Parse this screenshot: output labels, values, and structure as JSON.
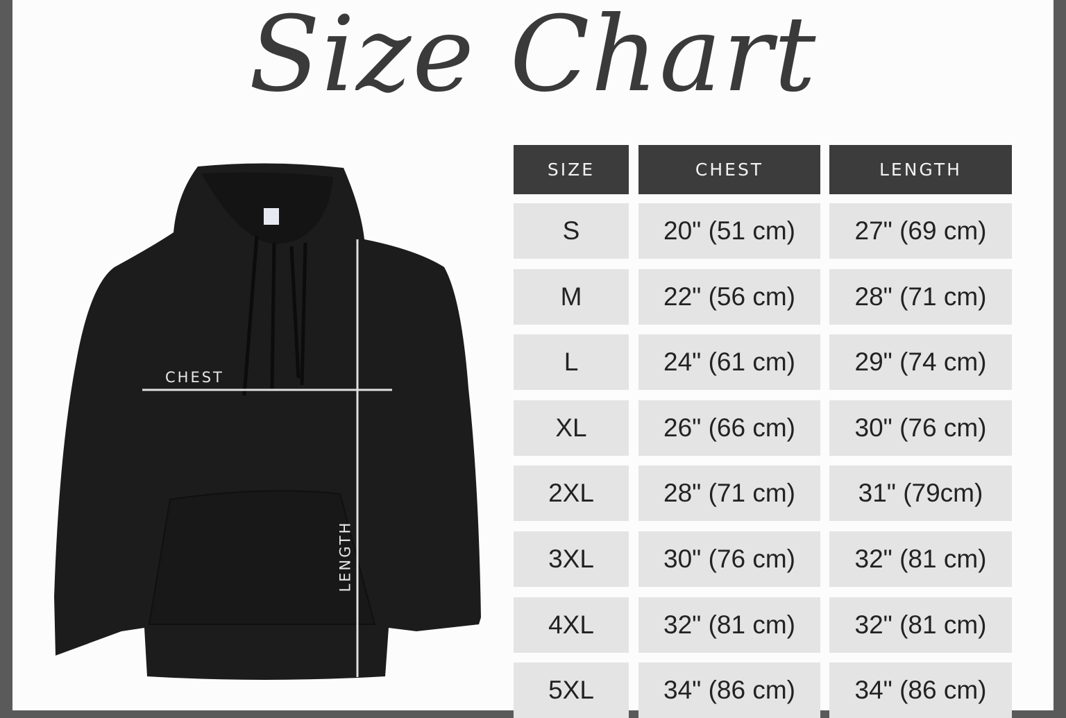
{
  "title": "Size Chart",
  "diagram_labels": {
    "chest": "CHEST",
    "length": "LENGTH"
  },
  "table": {
    "headers": [
      "SIZE",
      "CHEST",
      "LENGTH"
    ],
    "rows": [
      [
        "S",
        "20\" (51 cm)",
        "27\" (69 cm)"
      ],
      [
        "M",
        "22\" (56 cm)",
        "28\" (71 cm)"
      ],
      [
        "L",
        "24\" (61 cm)",
        "29\" (74 cm)"
      ],
      [
        "XL",
        "26\" (66 cm)",
        "30\" (76 cm)"
      ],
      [
        "2XL",
        "28\" (71 cm)",
        "31\" (79cm)"
      ],
      [
        "3XL",
        "30\" (76 cm)",
        "32\" (81 cm)"
      ],
      [
        "4XL",
        "32\" (81 cm)",
        "32\" (81 cm)"
      ],
      [
        "5XL",
        "34\" (86 cm)",
        "34\" (86 cm)"
      ]
    ]
  },
  "colors": {
    "frame": "#5a5a5a",
    "header_bg": "#3c3c3c",
    "cell_bg": "#e4e4e4",
    "hoodie": "#1c1c1c"
  }
}
